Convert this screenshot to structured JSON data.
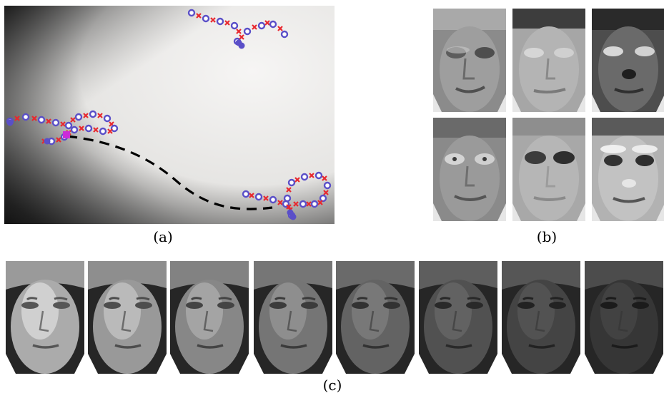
{
  "captions": {
    "a": "(a)",
    "b": "(b)",
    "c": "(c)"
  },
  "panel_a": {
    "background_gradient": {
      "dark": "#1a1a1a",
      "light": "#f4f3f2"
    },
    "colors": {
      "circle_marker": "#5a4fc8",
      "cross_marker": "#e8282e",
      "highlight_point": "#cc2bd8",
      "path": "#000000"
    }
  },
  "panel_b": {
    "grid": "2x3",
    "faces": [
      {
        "brightness": "mid",
        "style": "eigenface-top-left"
      },
      {
        "brightness": "mid",
        "style": "eigenface-top-middle"
      },
      {
        "brightness": "dark",
        "style": "eigenface-top-right"
      },
      {
        "brightness": "mid",
        "style": "eigenface-bottom-left"
      },
      {
        "brightness": "mid",
        "style": "eigenface-bottom-middle"
      },
      {
        "brightness": "light",
        "style": "eigenface-bottom-right"
      }
    ]
  },
  "panel_c": {
    "count": 8,
    "lighting_levels": [
      0.95,
      0.85,
      0.75,
      0.65,
      0.55,
      0.45,
      0.38,
      0.3
    ]
  }
}
